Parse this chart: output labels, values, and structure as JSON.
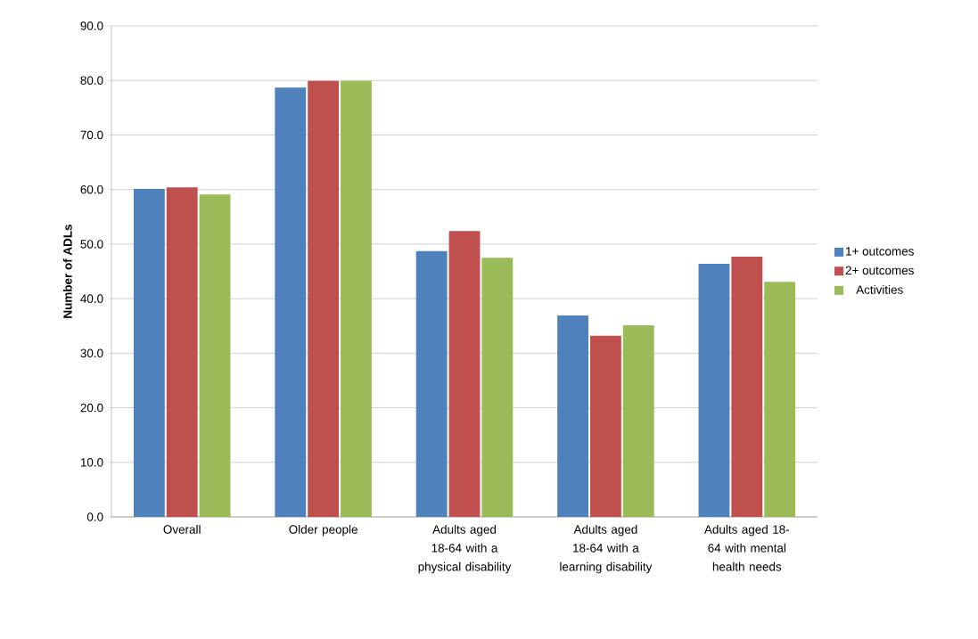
{
  "chart_data": {
    "type": "bar",
    "ylabel": "Number of ADLs",
    "categories": [
      "Overall",
      "Older people",
      "Adults aged 18-64 with a physical disability",
      "Adults aged 18-64 with a learning disability",
      "Adults aged 18-64 with mental health needs"
    ],
    "series": [
      {
        "name": "1+ outcomes",
        "color": "#4f81bd",
        "values": [
          60.1,
          78.7,
          48.7,
          36.9,
          46.4
        ]
      },
      {
        "name": "2+ outcomes",
        "color": "#c0504d",
        "values": [
          60.4,
          79.9,
          52.4,
          33.2,
          47.7
        ]
      },
      {
        "name": "Activities",
        "color": "#9bbb59",
        "values": [
          59.1,
          79.9,
          47.5,
          35.1,
          43.1
        ]
      }
    ],
    "ylim": [
      0,
      90
    ],
    "yticks": [
      {
        "value": 0,
        "label": "0.0"
      },
      {
        "value": 10,
        "label": "10.0"
      },
      {
        "value": 20,
        "label": "20.0"
      },
      {
        "value": 30,
        "label": "30.0"
      },
      {
        "value": 40,
        "label": "40.0"
      },
      {
        "value": 50,
        "label": "50.0"
      },
      {
        "value": 60,
        "label": "60.0"
      },
      {
        "value": 70,
        "label": "70.0"
      },
      {
        "value": 80,
        "label": "80.0"
      },
      {
        "value": 90,
        "label": "90.0"
      }
    ],
    "grid": "y",
    "legend": "right"
  }
}
